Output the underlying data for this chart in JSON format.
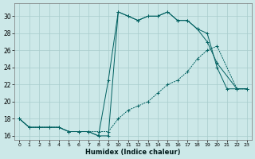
{
  "xlabel": "Humidex (Indice chaleur)",
  "xlim": [
    -0.5,
    23.5
  ],
  "ylim": [
    15.5,
    31.5
  ],
  "yticks": [
    16,
    18,
    20,
    22,
    24,
    26,
    28,
    30
  ],
  "xticks": [
    0,
    1,
    2,
    3,
    4,
    5,
    6,
    7,
    8,
    9,
    10,
    11,
    12,
    13,
    14,
    15,
    16,
    17,
    18,
    19,
    20,
    21,
    22,
    23
  ],
  "bg_color": "#cce8e8",
  "grid_color": "#a8cccc",
  "line_color": "#006060",
  "line1_x": [
    0,
    1,
    2,
    3,
    4,
    5,
    6,
    7,
    8,
    9,
    10,
    11,
    12,
    13,
    14,
    15,
    16,
    17,
    18,
    19,
    20,
    21,
    22,
    23
  ],
  "line1_y": [
    18,
    17,
    17,
    17,
    17,
    16.5,
    16.5,
    16.5,
    16,
    16,
    30.5,
    30,
    29.5,
    30,
    30,
    30.5,
    29.5,
    29.5,
    28.5,
    28,
    24,
    21.5,
    21.5,
    21.5
  ],
  "line2_x": [
    0,
    1,
    2,
    3,
    4,
    5,
    6,
    7,
    8,
    9,
    10,
    11,
    12,
    13,
    14,
    15,
    16,
    17,
    18,
    19,
    20,
    22,
    23
  ],
  "line2_y": [
    18,
    17,
    17,
    17,
    17,
    16.5,
    16.5,
    16.5,
    16,
    22.5,
    30.5,
    30,
    29.5,
    30,
    30,
    30.5,
    29.5,
    29.5,
    28.5,
    27,
    24.5,
    21.5,
    21.5
  ],
  "line3_x": [
    0,
    1,
    2,
    3,
    4,
    5,
    6,
    7,
    8,
    9,
    10,
    11,
    12,
    13,
    14,
    15,
    16,
    17,
    18,
    19,
    20,
    22,
    23
  ],
  "line3_y": [
    18,
    17,
    17,
    17,
    17,
    16.5,
    16.5,
    16.5,
    16.5,
    16.5,
    18,
    19,
    19.5,
    20,
    21,
    22,
    22.5,
    23.5,
    25,
    26,
    26.5,
    21.5,
    21.5
  ]
}
